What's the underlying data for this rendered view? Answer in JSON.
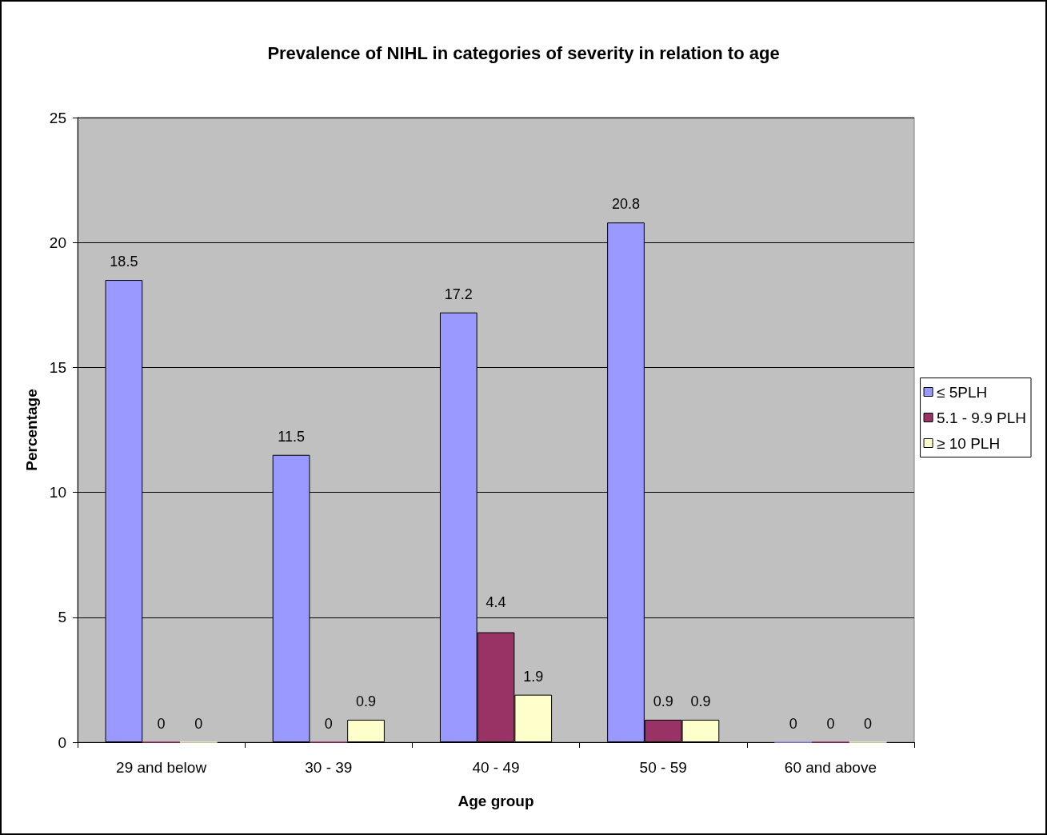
{
  "chart_data": {
    "type": "bar",
    "title": "Prevalence of NIHL in categories of severity in relation to age",
    "xlabel": "Age group",
    "ylabel": "Percentage",
    "categories": [
      "29 and below",
      "30 - 39",
      "40 - 49",
      "50 - 59",
      "60 and above"
    ],
    "series": [
      {
        "name": "≤ 5PLH",
        "color": "#9999ff",
        "values": [
          18.5,
          11.5,
          17.2,
          20.8,
          0
        ]
      },
      {
        "name": "5.1 - 9.9 PLH",
        "color": "#993366",
        "values": [
          0,
          0,
          4.4,
          0.9,
          0
        ]
      },
      {
        "name": "≥ 10 PLH",
        "color": "#ffffcc",
        "values": [
          0,
          0.9,
          1.9,
          0.9,
          0
        ]
      }
    ],
    "ylim": [
      0,
      25
    ],
    "yticks": [
      0,
      5,
      10,
      15,
      20,
      25
    ],
    "grid": "y",
    "legend": "right",
    "data_labels": true
  }
}
